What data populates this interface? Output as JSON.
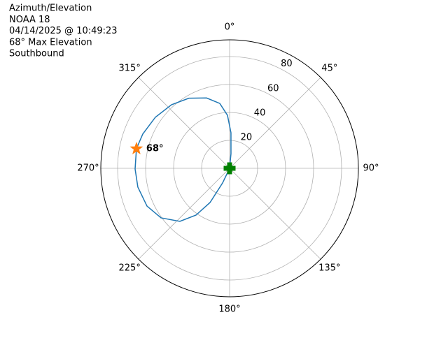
{
  "chart_data": {
    "type": "polar",
    "title_lines": [
      "Azimuth/Elevation",
      "NOAA 18",
      "04/14/2025 @ 10:49:23",
      "68° Max Elevation",
      "Southbound"
    ],
    "theta_ticks": [
      {
        "value": 0,
        "label": "0°"
      },
      {
        "value": 45,
        "label": "45°"
      },
      {
        "value": 90,
        "label": "90°"
      },
      {
        "value": 135,
        "label": "135°"
      },
      {
        "value": 180,
        "label": "180°"
      },
      {
        "value": 225,
        "label": "225°"
      },
      {
        "value": 270,
        "label": "270°"
      },
      {
        "value": 315,
        "label": "315°"
      }
    ],
    "rlim": [
      0,
      92
    ],
    "rticks": [
      20,
      40,
      60,
      80
    ],
    "grid": true,
    "series": [
      {
        "color": "#1f77b4",
        "x": [
          5,
          5.4,
          2.2,
          357.7,
          351.4,
          341.9,
          329.9,
          317.6,
          304.6,
          291.6,
          281.9,
          269.6,
          258.4,
          245.4,
          234.1,
          223.1,
          215.6,
          209.7,
          205.5,
          205
        ],
        "values": [
          0,
          10.5,
          25.5,
          38,
          47,
          53,
          58,
          61.6,
          64.4,
          66.7,
          68,
          67.5,
          66.9,
          64.9,
          60.5,
          52,
          41.2,
          28.2,
          11.6,
          0
        ]
      }
    ],
    "max_point": {
      "azimuth": 281.9,
      "elevation": 68,
      "label": "68°",
      "color": "#ff7f0e"
    },
    "origin_marker": {
      "azimuth": 0,
      "elevation": 0,
      "color": "#008000"
    }
  }
}
